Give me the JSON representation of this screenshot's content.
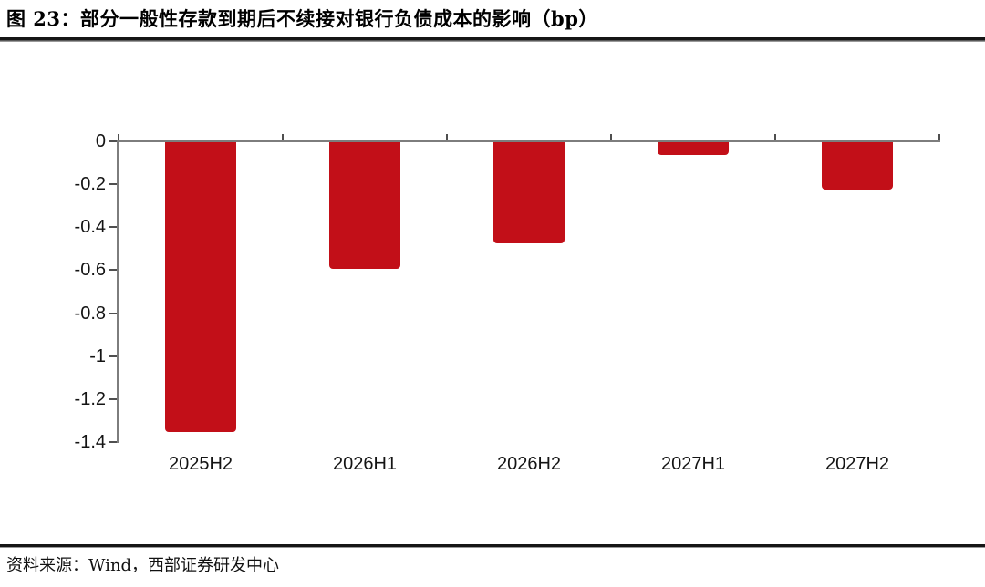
{
  "page": {
    "title": "图 23：部分一般性存款到期后不续接对银行负债成本的影响（bp）",
    "source_note": "资料来源：Wind，西部证券研发中心"
  },
  "chart_data": {
    "type": "bar",
    "title": "部分一般性存款到期后不续接对银行负债成本的影响（bp）",
    "unit": "bp",
    "categories": [
      "2025H2",
      "2026H1",
      "2026H2",
      "2027H1",
      "2027H2"
    ],
    "values": [
      -1.35,
      -0.59,
      -0.47,
      -0.06,
      -0.22
    ],
    "ylim": [
      -1.4,
      0
    ],
    "yticks": [
      0,
      -0.2,
      -0.4,
      -0.6,
      -0.8,
      -1,
      -1.2,
      -1.4
    ],
    "ytick_labels": [
      "0",
      "-0.2",
      "-0.4",
      "-0.6",
      "-0.8",
      "-1",
      "-1.2",
      "-1.4"
    ],
    "bar_color": "#C20F18",
    "axis_color": "#7d7d7d",
    "tick_color": "#4f4f4f",
    "grid": false,
    "legend": false
  }
}
